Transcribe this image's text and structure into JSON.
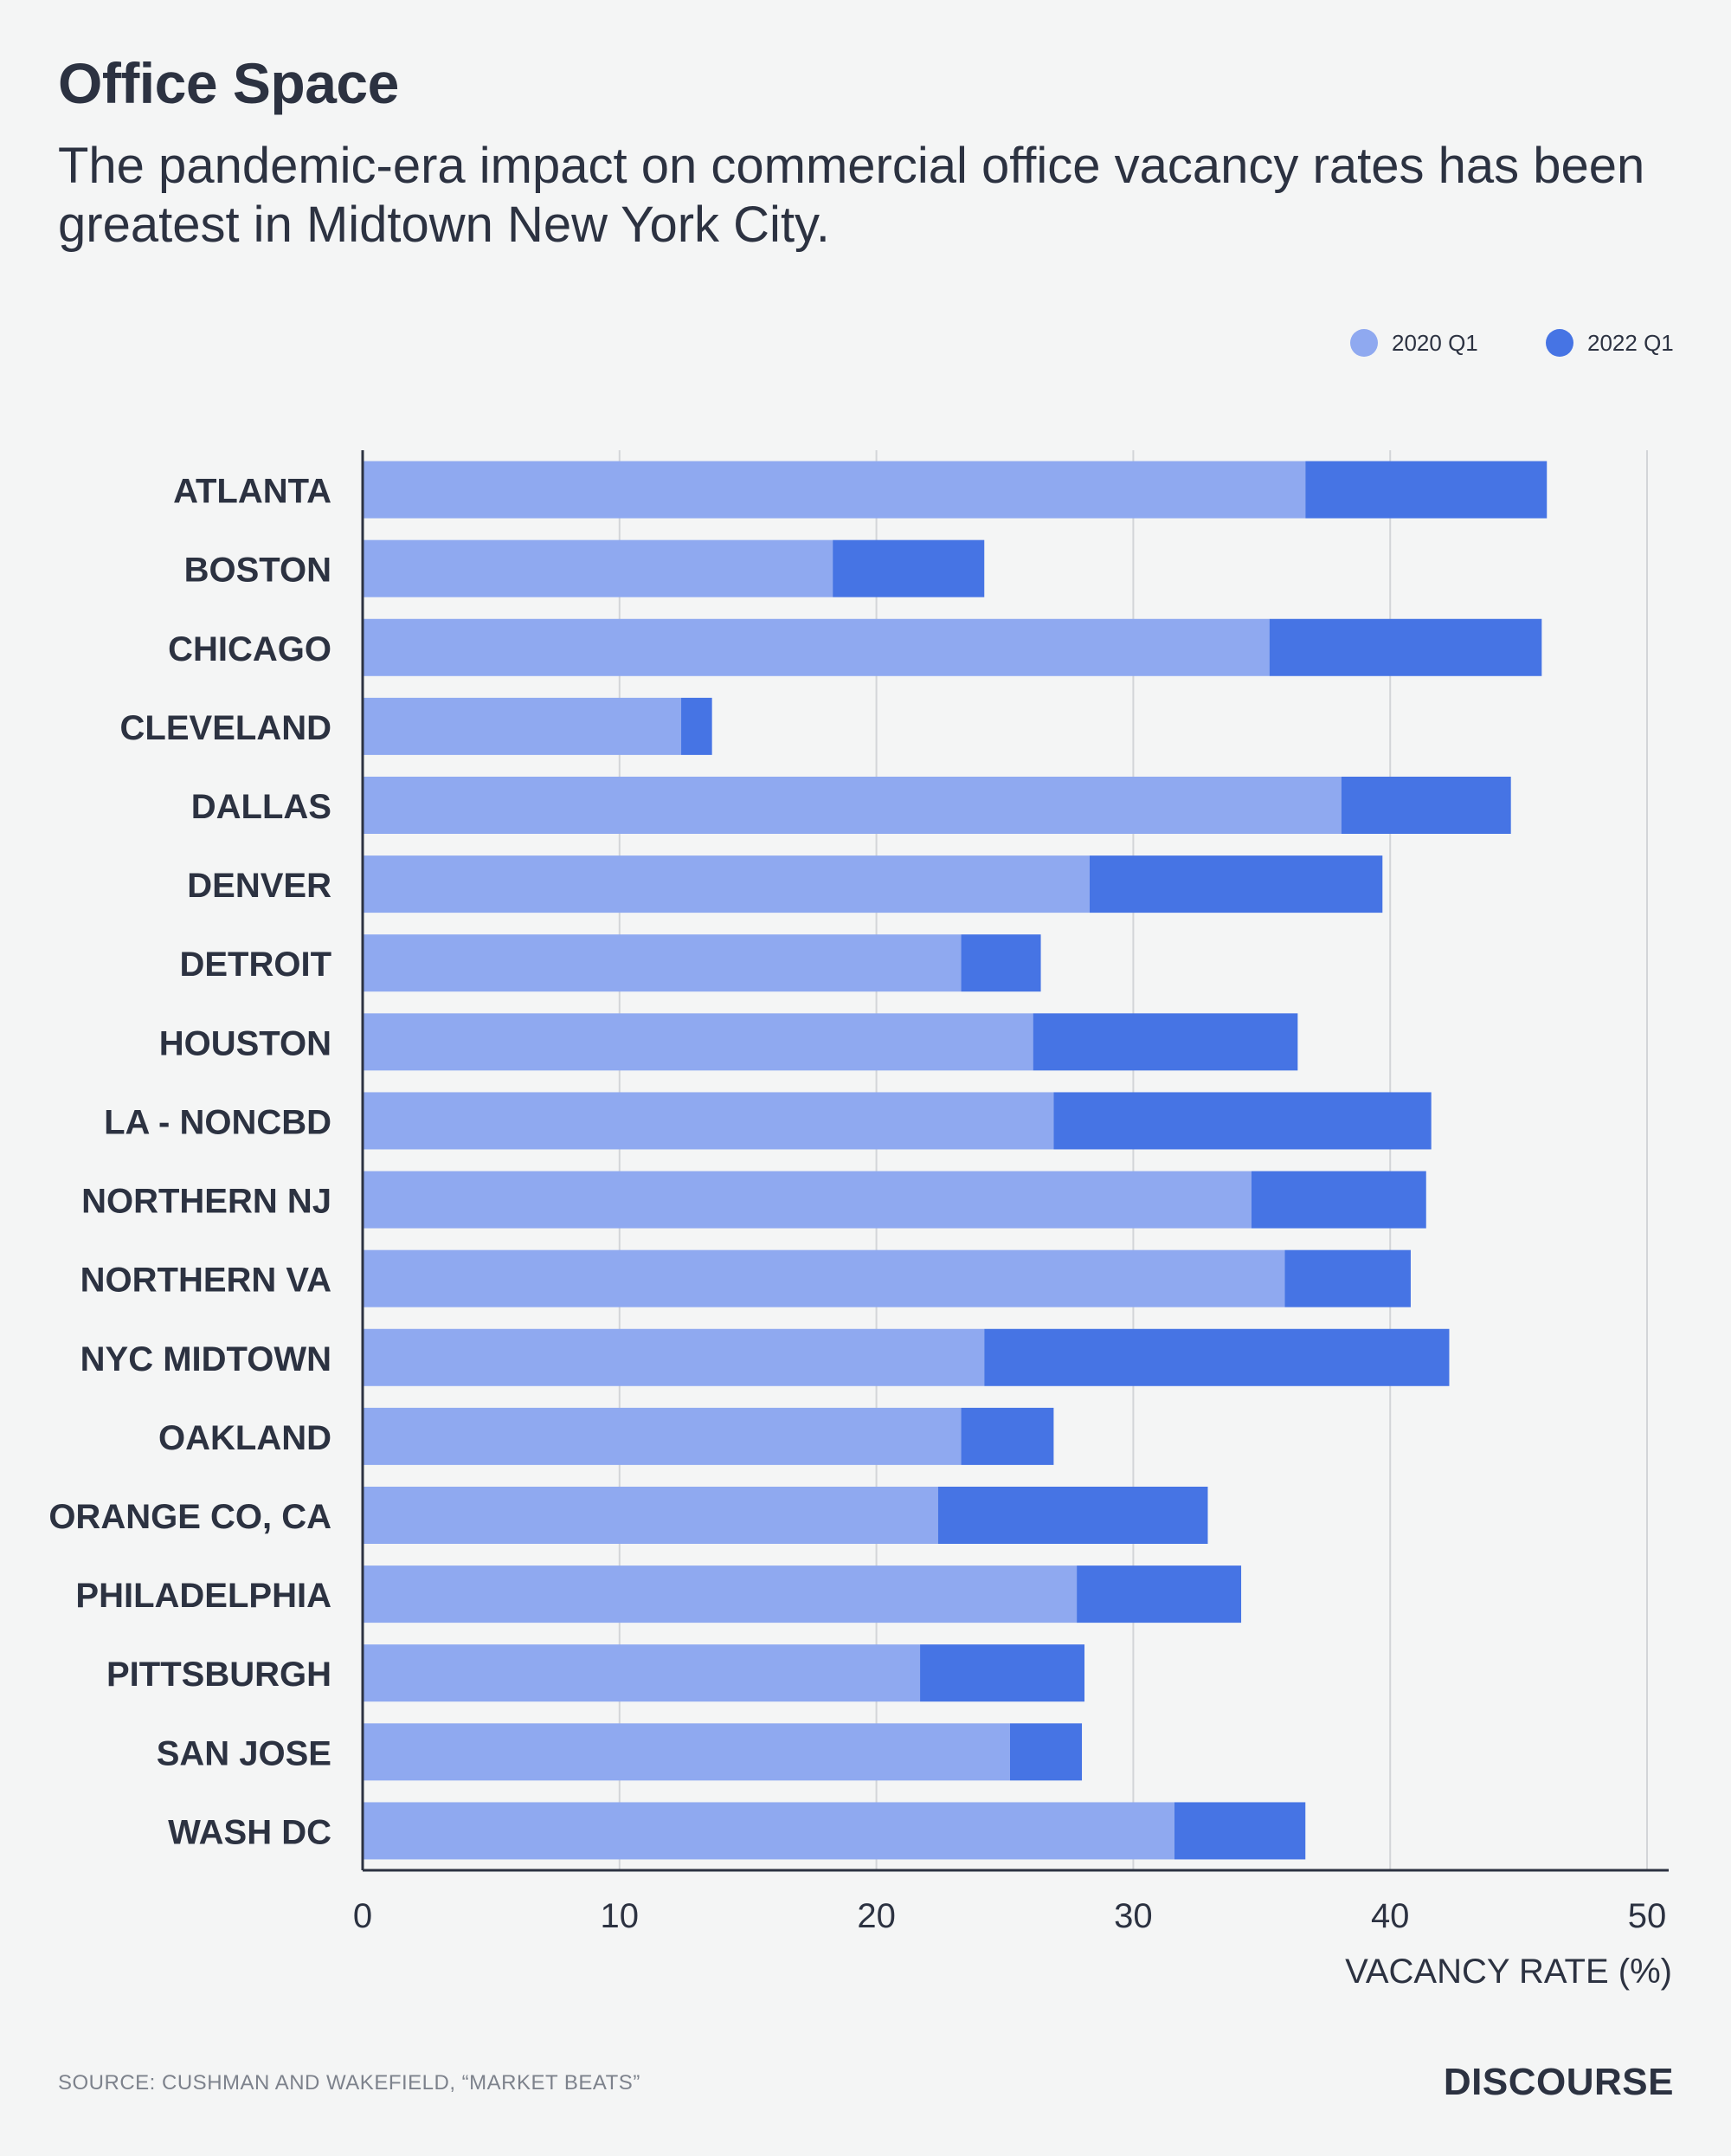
{
  "title": "Office Space",
  "subtitle": "The pandemic-era impact on commercial office vacancy rates has been greatest in Midtown New York City.",
  "source": "SOURCE:  CUSHMAN AND WAKEFIELD, “MARKET BEATS”",
  "brand": "DISCOURSE",
  "colors": {
    "series_2020": "#8fa9f0",
    "series_2022": "#4674e4",
    "text": "#2c3241",
    "grid": "#d3d5d8",
    "background": "#f4f5f5"
  },
  "chart_data": {
    "type": "bar",
    "orientation": "horizontal",
    "stacked": true,
    "categories": [
      "ATLANTA",
      "BOSTON",
      "CHICAGO",
      "CLEVELAND",
      "DALLAS",
      "DENVER",
      "DETROIT",
      "HOUSTON",
      "LA - NONCBD",
      "NORTHERN NJ",
      "NORTHERN VA",
      "NYC MIDTOWN",
      "OAKLAND",
      "ORANGE CO, CA",
      "PHILADELPHIA",
      "PITTSBURGH",
      "SAN JOSE",
      "WASH DC"
    ],
    "series": [
      {
        "name": "2020 Q1",
        "values": [
          36.7,
          18.3,
          35.3,
          12.4,
          38.1,
          28.3,
          23.3,
          26.1,
          26.9,
          34.6,
          35.9,
          24.2,
          23.3,
          22.4,
          27.8,
          21.7,
          25.2,
          31.6
        ]
      },
      {
        "name": "2022 Q1",
        "values": [
          9.4,
          5.9,
          10.6,
          1.2,
          6.6,
          11.4,
          3.1,
          10.3,
          14.7,
          6.8,
          4.9,
          18.1,
          3.6,
          10.5,
          6.4,
          6.4,
          2.8,
          5.1
        ]
      }
    ],
    "xlabel": "VACANCY RATE (%)",
    "ylabel": "",
    "xlim": [
      0,
      50
    ],
    "xticks": [
      0,
      10,
      20,
      30,
      40,
      50
    ],
    "grid": true,
    "legend": "top-right"
  }
}
